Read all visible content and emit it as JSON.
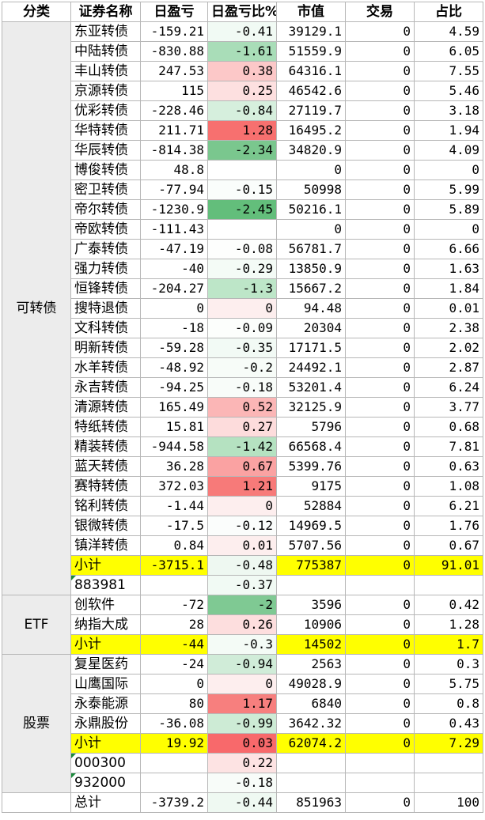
{
  "headers": [
    "分类",
    "证券名称",
    "日盈亏",
    "日盈亏比%",
    "市值",
    "交易",
    "占比"
  ],
  "groups": [
    {
      "category": "可转债",
      "rows": [
        {
          "name": "东亚转债",
          "pnl": "-159.21",
          "pct": "-0.41",
          "pctColor": "#f1faf4",
          "mv": "39129.1",
          "trade": "0",
          "share": "4.59"
        },
        {
          "name": "中陆转债",
          "pnl": "-830.88",
          "pct": "-1.61",
          "pctColor": "#a9ddb8",
          "mv": "51559.9",
          "trade": "0",
          "share": "6.05"
        },
        {
          "name": "丰山转债",
          "pnl": "247.53",
          "pct": "0.38",
          "pctColor": "#fcc8c8",
          "mv": "64316.1",
          "trade": "0",
          "share": "7.55"
        },
        {
          "name": "京源转债",
          "pnl": "115",
          "pct": "0.25",
          "pctColor": "#fde0e0",
          "mv": "46542.6",
          "trade": "0",
          "share": "5.46"
        },
        {
          "name": "优彩转债",
          "pnl": "-228.46",
          "pct": "-0.84",
          "pctColor": "#d6efdd",
          "mv": "27119.7",
          "trade": "0",
          "share": "3.18"
        },
        {
          "name": "华特转债",
          "pnl": "211.71",
          "pct": "1.28",
          "pctColor": "#f7706f",
          "mv": "16495.2",
          "trade": "0",
          "share": "1.94"
        },
        {
          "name": "华辰转债",
          "pnl": "-814.38",
          "pct": "-2.34",
          "pctColor": "#7ac78e",
          "mv": "34820.9",
          "trade": "0",
          "share": "4.09"
        },
        {
          "name": "博俊转债",
          "pnl": "48.8",
          "pct": "",
          "pctColor": "#ffffff",
          "mv": "0",
          "trade": "0",
          "share": "0"
        },
        {
          "name": "密卫转债",
          "pnl": "-77.94",
          "pct": "-0.15",
          "pctColor": "#fafdfb",
          "mv": "50998",
          "trade": "0",
          "share": "5.99"
        },
        {
          "name": "帝尔转债",
          "pnl": "-1230.9",
          "pct": "-2.45",
          "pctColor": "#63be7b",
          "mv": "50216.1",
          "trade": "0",
          "share": "5.89"
        },
        {
          "name": "帝欧转债",
          "pnl": "-111.43",
          "pct": "",
          "pctColor": "#ffffff",
          "mv": "0",
          "trade": "0",
          "share": "0"
        },
        {
          "name": "广泰转债",
          "pnl": "-47.19",
          "pct": "-0.08",
          "pctColor": "#fdfefd",
          "mv": "56781.7",
          "trade": "0",
          "share": "6.66"
        },
        {
          "name": "强力转债",
          "pnl": "-40",
          "pct": "-0.29",
          "pctColor": "#f4fbf6",
          "mv": "13850.9",
          "trade": "0",
          "share": "1.63"
        },
        {
          "name": "恒锋转债",
          "pnl": "-204.27",
          "pct": "-1.3",
          "pctColor": "#bde6c8",
          "mv": "15667.2",
          "trade": "0",
          "share": "1.84"
        },
        {
          "name": "搜特退债",
          "pnl": "0",
          "pct": "0",
          "pctColor": "#fdeeee",
          "mv": "94.48",
          "trade": "0",
          "share": "0.01"
        },
        {
          "name": "文科转债",
          "pnl": "-18",
          "pct": "-0.09",
          "pctColor": "#fcfefc",
          "mv": "20304",
          "trade": "0",
          "share": "2.38"
        },
        {
          "name": "明新转债",
          "pnl": "-59.28",
          "pct": "-0.35",
          "pctColor": "#f2faf5",
          "mv": "17171.5",
          "trade": "0",
          "share": "2.02"
        },
        {
          "name": "水羊转债",
          "pnl": "-48.92",
          "pct": "-0.2",
          "pctColor": "#f7fcf8",
          "mv": "24492.1",
          "trade": "0",
          "share": "2.87"
        },
        {
          "name": "永吉转债",
          "pnl": "-94.25",
          "pct": "-0.18",
          "pctColor": "#f8fcf9",
          "mv": "53201.4",
          "trade": "0",
          "share": "6.24"
        },
        {
          "name": "清源转债",
          "pnl": "165.49",
          "pct": "0.52",
          "pctColor": "#fbb6b6",
          "mv": "32125.9",
          "trade": "0",
          "share": "3.77"
        },
        {
          "name": "特纸转债",
          "pnl": "15.81",
          "pct": "0.27",
          "pctColor": "#fddcdc",
          "mv": "5796",
          "trade": "0",
          "share": "0.68"
        },
        {
          "name": "精装转债",
          "pnl": "-944.58",
          "pct": "-1.42",
          "pctColor": "#b5e2c1",
          "mv": "66568.4",
          "trade": "0",
          "share": "7.81"
        },
        {
          "name": "蓝天转债",
          "pnl": "36.28",
          "pct": "0.67",
          "pctColor": "#faa2a2",
          "mv": "5399.76",
          "trade": "0",
          "share": "0.63"
        },
        {
          "name": "赛特转债",
          "pnl": "372.03",
          "pct": "1.21",
          "pctColor": "#f77a79",
          "mv": "9175",
          "trade": "0",
          "share": "1.08"
        },
        {
          "name": "铭利转债",
          "pnl": "-1.44",
          "pct": "0",
          "pctColor": "#fdeeee",
          "mv": "52884",
          "trade": "0",
          "share": "6.21"
        },
        {
          "name": "银微转债",
          "pnl": "-17.5",
          "pct": "-0.12",
          "pctColor": "#fbfdfc",
          "mv": "14969.5",
          "trade": "0",
          "share": "1.76"
        },
        {
          "name": "镇洋转债",
          "pnl": "0.84",
          "pct": "0.01",
          "pctColor": "#fdeeee",
          "mv": "5707.56",
          "trade": "0",
          "share": "0.67"
        }
      ],
      "subtotal": {
        "name": "小计",
        "pnl": "-3715.1",
        "pct": "-0.48",
        "pctColor": "#eef8f1",
        "mv": "775387",
        "trade": "0",
        "share": "91.01"
      },
      "extras": [
        {
          "name": "883981",
          "pct": "-0.37",
          "pctColor": "#f1faf4"
        }
      ]
    },
    {
      "category": "ETF",
      "rows": [
        {
          "name": "创软件",
          "pnl": "-72",
          "pct": "-2",
          "pctColor": "#7fc993",
          "mv": "3596",
          "trade": "0",
          "share": "0.42"
        },
        {
          "name": "纳指大成",
          "pnl": "28",
          "pct": "0.26",
          "pctColor": "#fddede",
          "mv": "10906",
          "trade": "0",
          "share": "1.28"
        }
      ],
      "subtotal": {
        "name": "小计",
        "pnl": "-44",
        "pct": "-0.3",
        "pctColor": "#f4fbf6",
        "mv": "14502",
        "trade": "0",
        "share": "1.7"
      },
      "extras": []
    },
    {
      "category": "股票",
      "rows": [
        {
          "name": "复星医药",
          "pnl": "-24",
          "pct": "-0.94",
          "pctColor": "#d0ecd8",
          "mv": "2563",
          "trade": "0",
          "share": "0.3"
        },
        {
          "name": "山鹰国际",
          "pnl": "0",
          "pct": "0",
          "pctColor": "#fdeeee",
          "mv": "49028.9",
          "trade": "0",
          "share": "5.75"
        },
        {
          "name": "永泰能源",
          "pnl": "80",
          "pct": "1.17",
          "pctColor": "#f77f7e",
          "mv": "6840",
          "trade": "0",
          "share": "0.8"
        },
        {
          "name": "永鼎股份",
          "pnl": "-36.08",
          "pct": "-0.99",
          "pctColor": "#cdebd5",
          "mv": "3642.32",
          "trade": "0",
          "share": "0.43"
        }
      ],
      "subtotal": {
        "name": "小计",
        "pnl": "19.92",
        "pct": "0.03",
        "pctColor": "#f8696b",
        "mv": "62074.2",
        "trade": "0",
        "share": "7.29"
      },
      "extras": [
        {
          "name": "000300",
          "pct": "0.22",
          "pctColor": "#fde3e3"
        },
        {
          "name": "932000",
          "pct": "-0.18",
          "pctColor": "#f8fcf9"
        }
      ]
    }
  ],
  "total": {
    "name": "总计",
    "pnl": "-3739.2",
    "pct": "-0.44",
    "pctColor": "#eff9f2",
    "mv": "851963",
    "trade": "0",
    "share": "100"
  },
  "colors": {
    "subtotalYellow": "#ffff00",
    "categoryGray": "#ececec",
    "gridLine": "#b7b7b7"
  }
}
